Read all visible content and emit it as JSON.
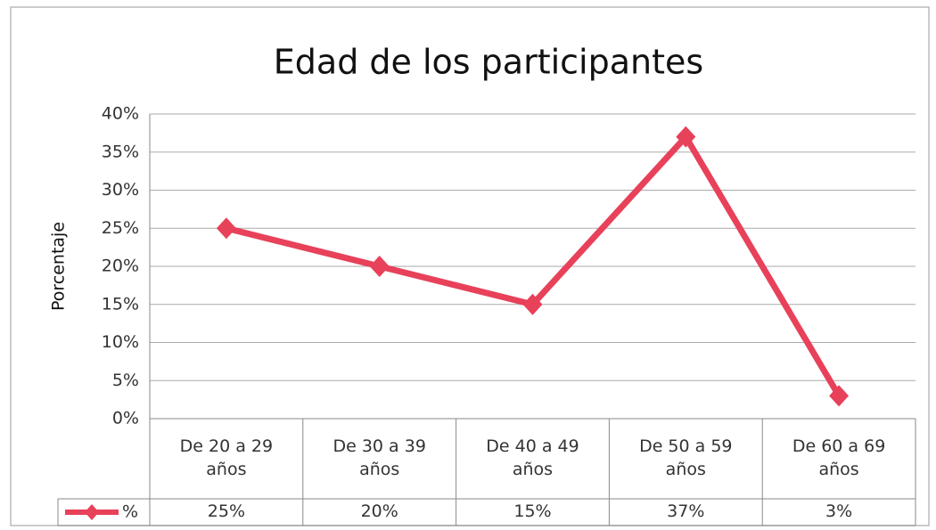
{
  "chart_data": {
    "type": "line",
    "title": "Edad de los participantes",
    "y_label": "Porcentaje",
    "categories": [
      "De 20 a 29 años",
      "De 30 a 39 años",
      "De 40 a 49 años",
      "De 50 a 59 años",
      "De 60 a 69 años"
    ],
    "series": [
      {
        "name": "%",
        "color": "#e8415a",
        "values": [
          25,
          20,
          15,
          37,
          3
        ],
        "value_labels": [
          "25%",
          "20%",
          "15%",
          "37%",
          "3%"
        ]
      }
    ],
    "ylim": [
      0,
      40
    ],
    "yticks": [
      {
        "value": 0,
        "label": "0%"
      },
      {
        "value": 5,
        "label": "5%"
      },
      {
        "value": 10,
        "label": "10%"
      },
      {
        "value": 15,
        "label": "15%"
      },
      {
        "value": 20,
        "label": "20%"
      },
      {
        "value": 25,
        "label": "25%"
      },
      {
        "value": 30,
        "label": "30%"
      },
      {
        "value": 35,
        "label": "35%"
      },
      {
        "value": 40,
        "label": "40%"
      }
    ],
    "grid": true
  }
}
